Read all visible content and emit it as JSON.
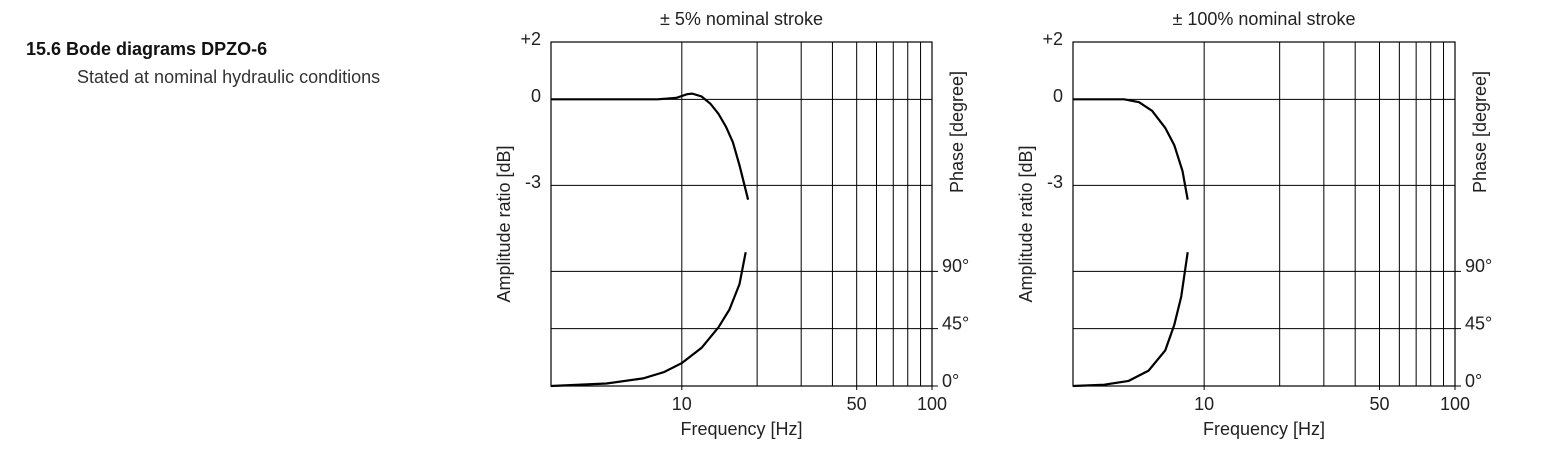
{
  "heading": "15.6 Bode diagrams DPZO-6",
  "subheading": "Stated at nominal hydraulic conditions",
  "chart_data": [
    {
      "type": "line",
      "title": "± 5% nominal stroke",
      "xlabel": "Frequency [Hz]",
      "ylabel": "Amplitude ratio  [dB]",
      "y2label": "Phase [degree]",
      "xscale": "log",
      "xlim": [
        3,
        100
      ],
      "xticks": [
        10,
        50,
        100
      ],
      "xgrid": [
        10,
        20,
        30,
        40,
        50,
        60,
        70,
        80,
        90,
        100
      ],
      "ylim": [
        -10,
        2
      ],
      "yticks": [
        {
          "value": 2,
          "label": "+2"
        },
        0,
        -3
      ],
      "y2lim": [
        0,
        270
      ],
      "y2ticks": [
        {
          "value": 0,
          "label": "0°"
        },
        {
          "value": 45,
          "label": "45°"
        },
        {
          "value": 90,
          "label": "90°"
        }
      ],
      "series": [
        {
          "color": "#000000",
          "x": [
            3,
            5,
            8,
            9.5,
            10.5,
            11,
            12,
            13,
            14,
            15,
            16,
            17,
            18.4
          ],
          "values": [
            0,
            0,
            0,
            0.05,
            0.18,
            0.2,
            0.1,
            -0.15,
            -0.5,
            -0.95,
            -1.5,
            -2.3,
            -3.5
          ]
        },
        {
          "color": "#000000",
          "axis": "y2",
          "x": [
            3,
            5,
            7,
            8.5,
            10,
            12,
            14,
            15.5,
            17,
            18
          ],
          "values": [
            0,
            2,
            6,
            11,
            18,
            30,
            46,
            60,
            80,
            105
          ]
        }
      ]
    },
    {
      "type": "line",
      "title": "± 100% nominal stroke",
      "xlabel": "Frequency [Hz]",
      "ylabel": "Amplitude ratio  [dB]",
      "y2label": "Phase [degree]",
      "xscale": "log",
      "xlim": [
        3,
        100
      ],
      "xticks": [
        10,
        50,
        100
      ],
      "xgrid": [
        10,
        20,
        30,
        40,
        50,
        60,
        70,
        80,
        90,
        100
      ],
      "ylim": [
        -10,
        2
      ],
      "yticks": [
        {
          "value": 2,
          "label": "+2"
        },
        0,
        -3
      ],
      "y2lim": [
        0,
        270
      ],
      "y2ticks": [
        {
          "value": 0,
          "label": "0°"
        },
        {
          "value": 45,
          "label": "45°"
        },
        {
          "value": 90,
          "label": "90°"
        }
      ],
      "series": [
        {
          "color": "#000000",
          "x": [
            3,
            4,
            4.8,
            5.5,
            6.2,
            7,
            7.6,
            8.2,
            8.6
          ],
          "values": [
            0,
            0,
            0,
            -0.1,
            -0.4,
            -1.0,
            -1.6,
            -2.5,
            -3.5
          ]
        },
        {
          "color": "#000000",
          "axis": "y2",
          "x": [
            3,
            4,
            5,
            6,
            7,
            7.6,
            8.1,
            8.6
          ],
          "values": [
            0,
            1,
            4,
            12,
            28,
            48,
            70,
            105
          ]
        }
      ]
    }
  ]
}
